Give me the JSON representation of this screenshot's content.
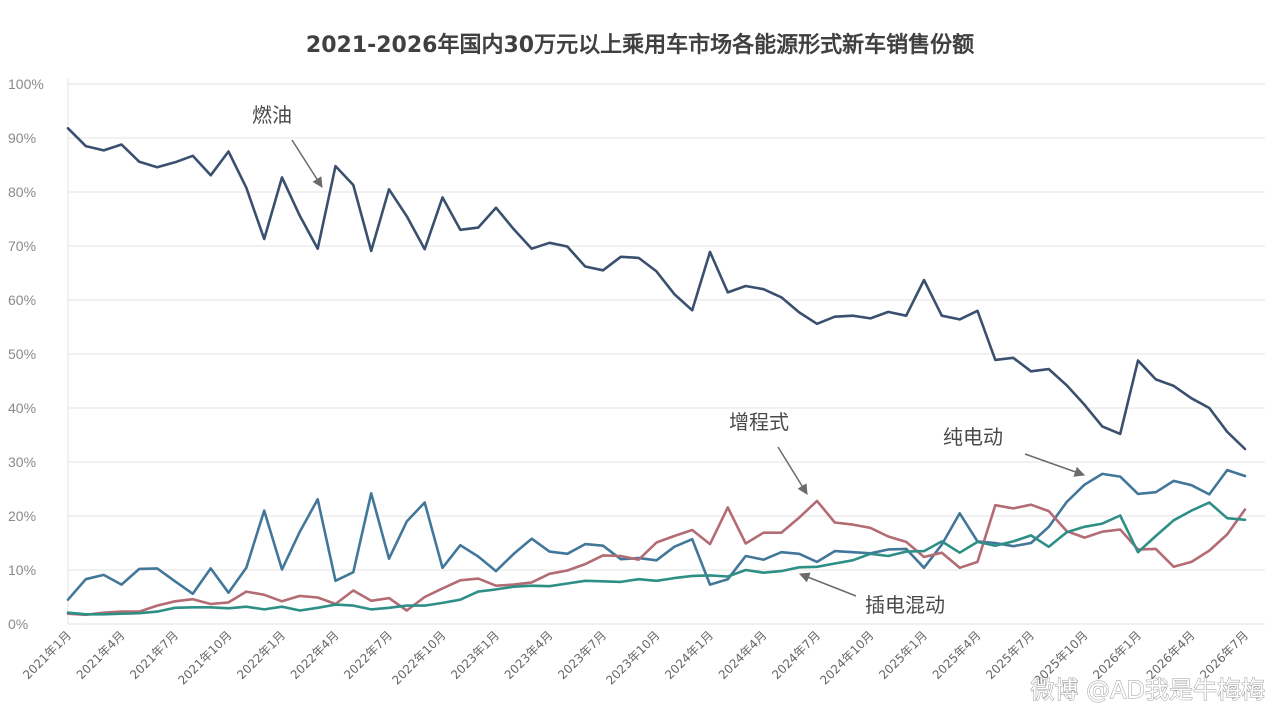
{
  "chart_data": {
    "type": "line",
    "title": "2021-2026年国内30万元以上乘用车市场各能源形式新车销售份额",
    "ylim": [
      0,
      100
    ],
    "yticks": [
      "0%",
      "10%",
      "20%",
      "30%",
      "40%",
      "50%",
      "60%",
      "70%",
      "80%",
      "90%",
      "100%"
    ],
    "grid": "horizontal",
    "x": [
      "2021年1月",
      "2021年2月",
      "2021年3月",
      "2021年4月",
      "2021年5月",
      "2021年6月",
      "2021年7月",
      "2021年8月",
      "2021年9月",
      "2021年10月",
      "2021年11月",
      "2021年12月",
      "2022年1月",
      "2022年2月",
      "2022年3月",
      "2022年4月",
      "2022年5月",
      "2022年6月",
      "2022年7月",
      "2022年8月",
      "2022年9月",
      "2022年10月",
      "2022年11月",
      "2022年12月",
      "2023年1月",
      "2023年2月",
      "2023年3月",
      "2023年4月",
      "2023年5月",
      "2023年6月",
      "2023年7月",
      "2023年8月",
      "2023年9月",
      "2023年10月",
      "2023年11月",
      "2023年12月",
      "2024年1月",
      "2024年2月",
      "2024年3月",
      "2024年4月",
      "2024年5月",
      "2024年6月",
      "2024年7月",
      "2024年8月",
      "2024年9月",
      "2024年10月",
      "2024年11月",
      "2024年12月",
      "2025年1月",
      "2025年2月",
      "2025年3月",
      "2025年4月",
      "2025年5月",
      "2025年6月",
      "2025年7月",
      "2025年8月",
      "2025年9月",
      "2025年10月",
      "2025年11月",
      "2025年12月",
      "2026年1月",
      "2026年2月",
      "2026年3月",
      "2026年4月",
      "2026年5月",
      "2026年6月",
      "2026年7月"
    ],
    "xtick_labels": [
      "2021年1月",
      "2021年4月",
      "2021年7月",
      "2021年10月",
      "2022年1月",
      "2022年4月",
      "2022年7月",
      "2022年10月",
      "2023年1月",
      "2023年4月",
      "2023年7月",
      "2023年10月",
      "2024年1月",
      "2024年4月",
      "2024年7月",
      "2024年10月",
      "2025年1月",
      "2025年4月",
      "2025年7月",
      "2025年10月",
      "2026年1月",
      "2026年4月",
      "2026年7月"
    ],
    "series": [
      {
        "name": "燃油",
        "color": "#3a506e",
        "values": [
          91.8,
          88.5,
          87.7,
          88.8,
          85.6,
          84.6,
          85.5,
          86.7,
          83.1,
          87.5,
          80.8,
          71.3,
          82.7,
          75.6,
          69.5,
          84.8,
          81.3,
          69.1,
          80.5,
          75.5,
          69.4,
          79.0,
          73.0,
          73.4,
          77.1,
          73.1,
          69.5,
          70.6,
          69.9,
          66.2,
          65.5,
          68.0,
          67.8,
          65.3,
          61.1,
          58.1,
          68.9,
          61.4,
          62.6,
          62.0,
          60.5,
          57.7,
          55.6,
          56.9,
          57.1,
          56.6,
          57.8,
          57.1,
          63.7,
          57.1,
          56.4,
          58.0,
          48.9,
          49.3,
          46.8,
          47.2,
          44.2,
          40.6,
          36.6,
          35.2,
          48.8,
          45.3,
          44.1,
          41.8,
          40.0,
          35.6,
          32.4
        ]
      },
      {
        "name": "纯电动",
        "color": "#42779a",
        "values": [
          4.5,
          8.3,
          9.1,
          7.3,
          10.2,
          10.3,
          7.9,
          5.6,
          10.3,
          5.8,
          10.4,
          21.0,
          10.1,
          17.1,
          23.1,
          8.0,
          9.6,
          24.2,
          12.1,
          19.0,
          22.5,
          10.4,
          14.6,
          12.5,
          9.8,
          13.0,
          15.8,
          13.4,
          13.0,
          14.8,
          14.5,
          12.0,
          12.2,
          11.8,
          14.3,
          15.7,
          7.3,
          8.3,
          12.6,
          11.9,
          13.3,
          13.0,
          11.5,
          13.5,
          13.3,
          13.1,
          13.8,
          13.9,
          10.4,
          14.7,
          20.5,
          15.3,
          15.0,
          14.4,
          15.0,
          18.0,
          22.6,
          25.8,
          27.8,
          27.3,
          24.1,
          24.4,
          26.5,
          25.7,
          24.0,
          28.5,
          27.4
        ]
      },
      {
        "name": "增程式",
        "color": "#b36b74",
        "values": [
          1.9,
          1.7,
          2.1,
          2.3,
          2.3,
          3.4,
          4.2,
          4.6,
          3.7,
          4.0,
          6.0,
          5.4,
          4.2,
          5.2,
          4.9,
          3.7,
          6.2,
          4.3,
          4.8,
          2.5,
          5.0,
          6.6,
          8.1,
          8.4,
          7.1,
          7.3,
          7.7,
          9.3,
          9.9,
          11.1,
          12.7,
          12.6,
          11.9,
          15.1,
          16.3,
          17.4,
          14.8,
          21.6,
          14.9,
          16.9,
          16.9,
          19.7,
          22.8,
          18.8,
          18.4,
          17.8,
          16.2,
          15.2,
          12.4,
          13.2,
          10.4,
          11.5,
          22.0,
          21.4,
          22.1,
          20.9,
          17.2,
          16.0,
          17.1,
          17.5,
          13.8,
          13.9,
          10.6,
          11.5,
          13.6,
          16.6,
          21.2
        ]
      },
      {
        "name": "插电混动",
        "color": "#2e8f86",
        "values": [
          2.1,
          1.8,
          1.8,
          1.9,
          2.0,
          2.3,
          3.0,
          3.1,
          3.1,
          2.9,
          3.2,
          2.7,
          3.2,
          2.5,
          3.0,
          3.6,
          3.4,
          2.7,
          3.0,
          3.4,
          3.4,
          3.9,
          4.5,
          6.0,
          6.4,
          6.9,
          7.1,
          7.0,
          7.5,
          8.0,
          7.9,
          7.8,
          8.3,
          8.0,
          8.5,
          8.9,
          9.0,
          8.8,
          10.0,
          9.5,
          9.8,
          10.5,
          10.6,
          11.2,
          11.8,
          13.0,
          12.6,
          13.4,
          13.5,
          15.3,
          13.2,
          15.2,
          14.5,
          15.3,
          16.4,
          14.3,
          17.0,
          18.0,
          18.6,
          20.1,
          13.3,
          16.3,
          19.2,
          21.0,
          22.5,
          19.6,
          19.3
        ]
      }
    ],
    "annotations": [
      {
        "text": "燃油",
        "series": "燃油"
      },
      {
        "text": "增程式",
        "series": "增程式"
      },
      {
        "text": "纯电动",
        "series": "纯电动"
      },
      {
        "text": "插电混动",
        "series": "插电混动"
      }
    ]
  },
  "watermark": "微博 @AD我是牛梅梅"
}
